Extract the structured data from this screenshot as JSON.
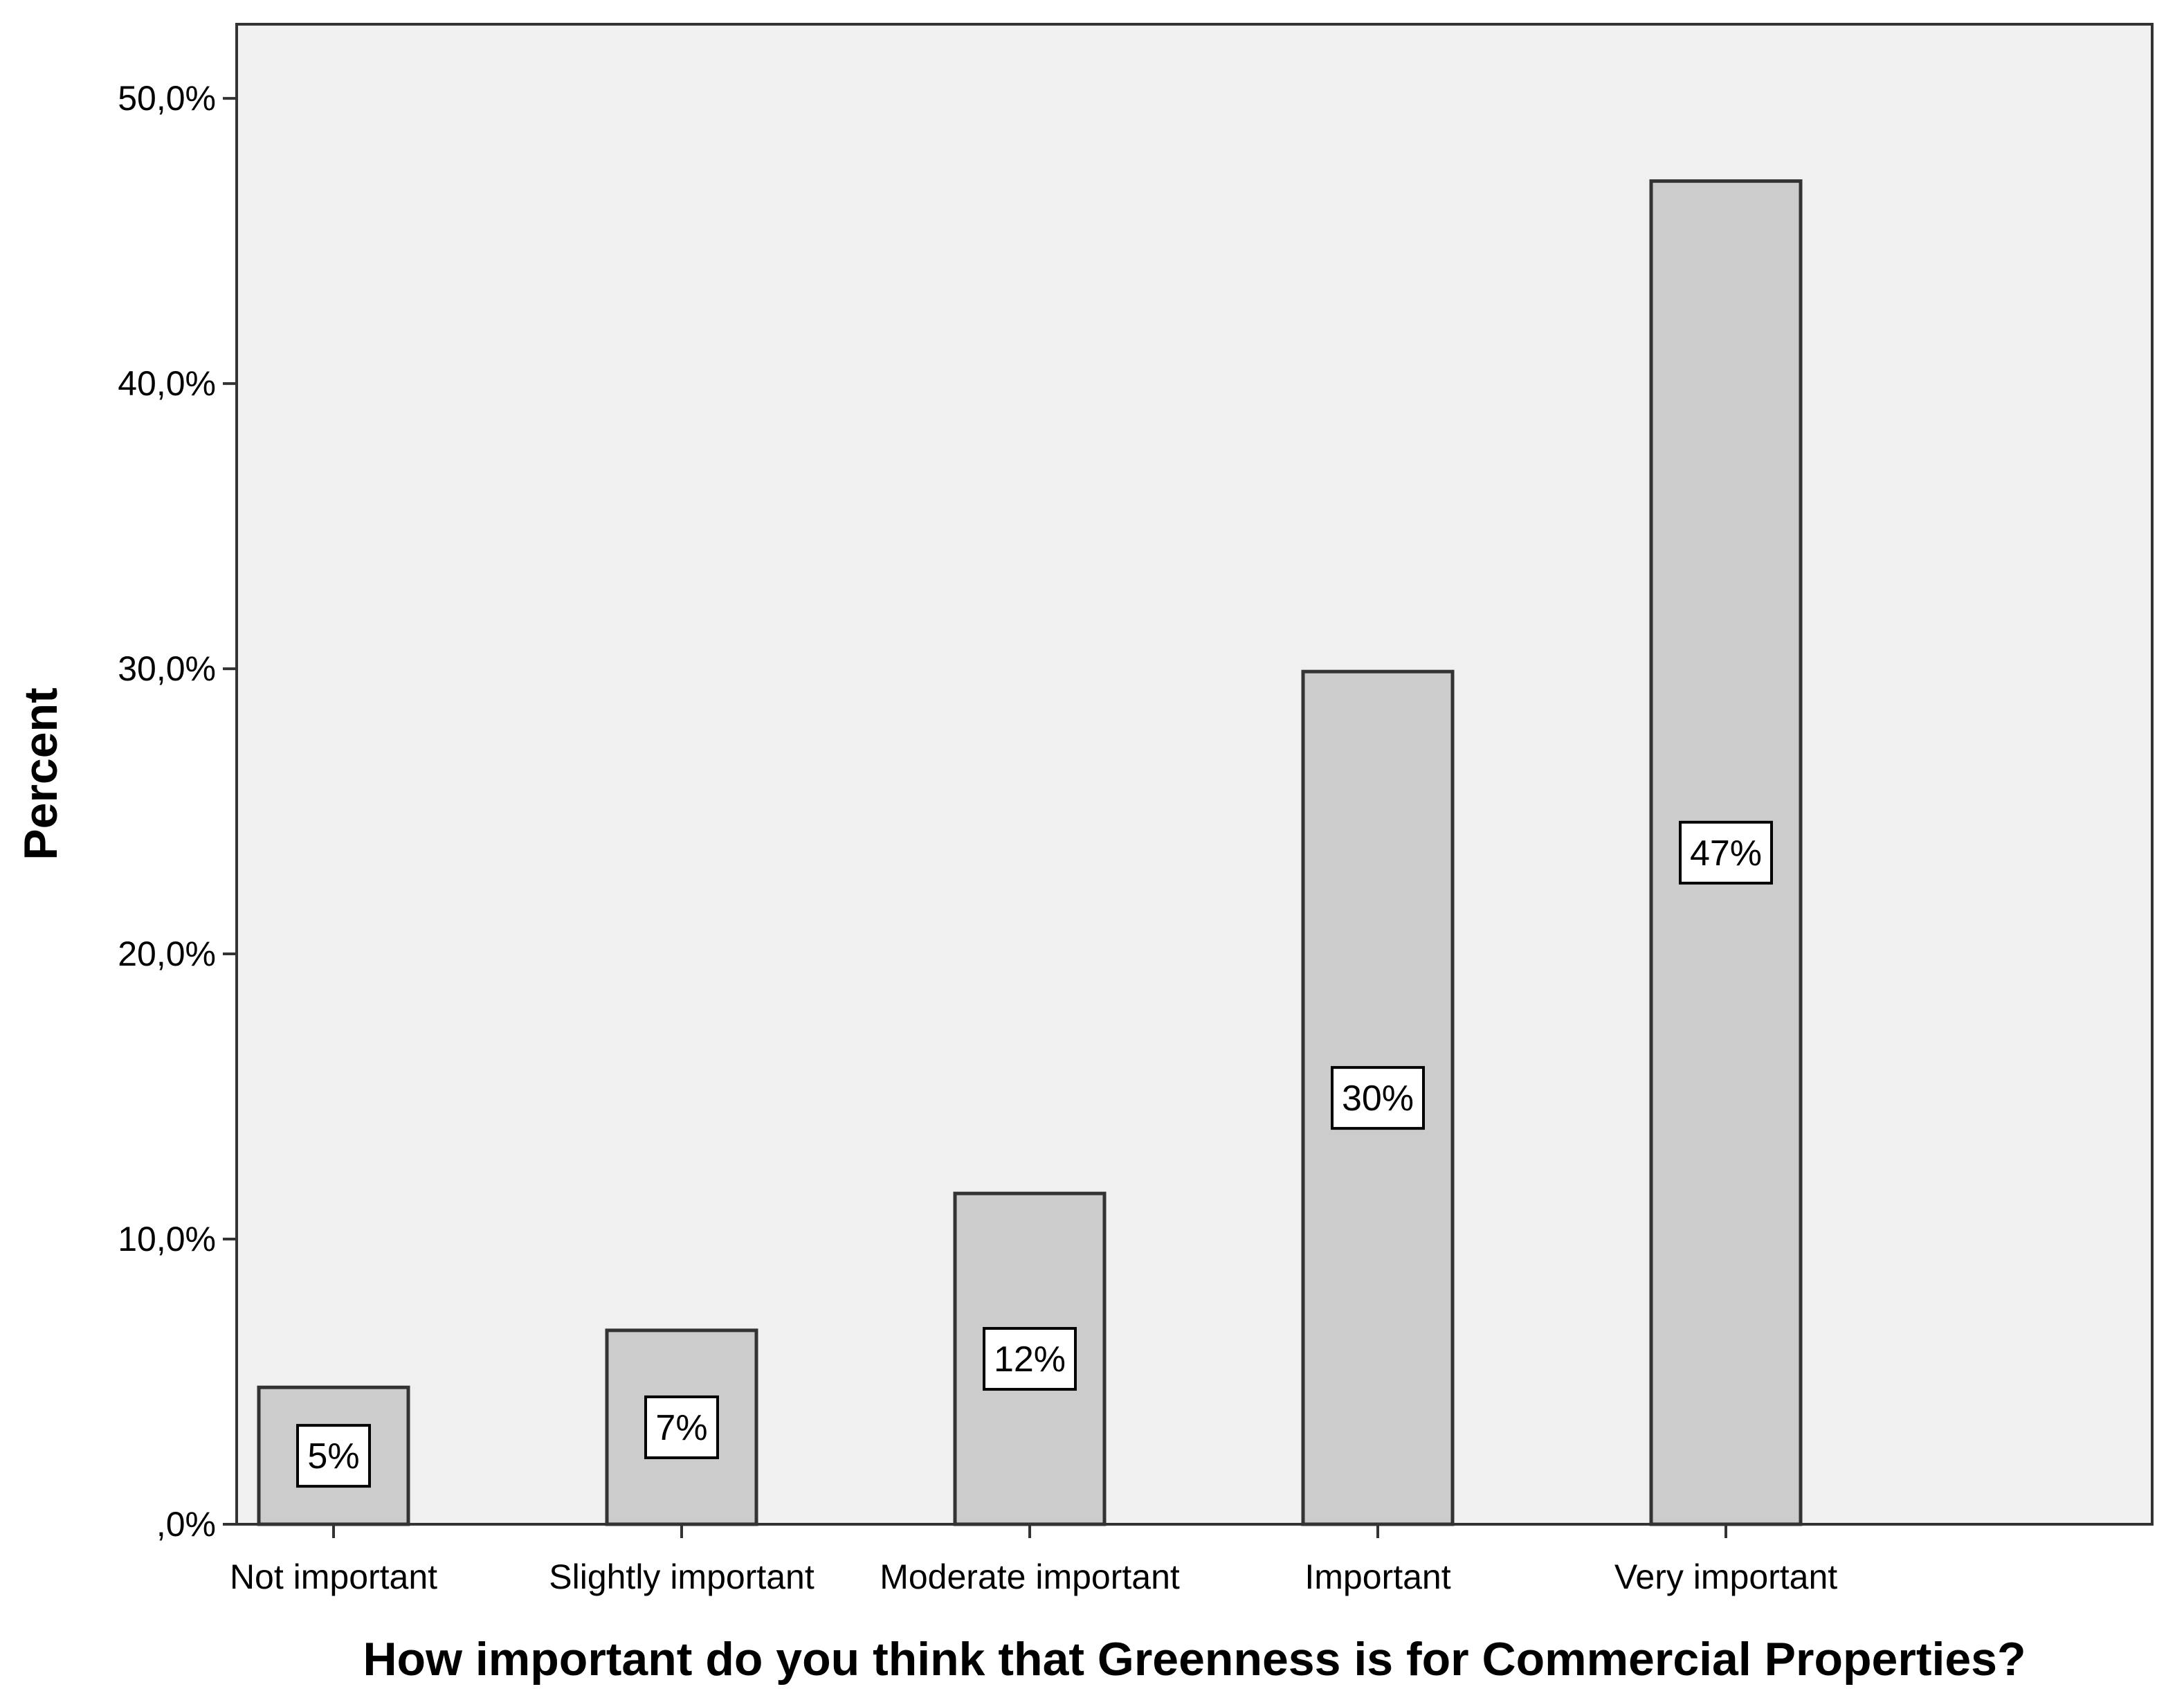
{
  "chart_data": {
    "type": "bar",
    "title": "",
    "xlabel": "How important do you think that Greenness is for Commercial Properties?",
    "ylabel": "Percent",
    "categories": [
      "Not important",
      "Slightly important",
      "Moderate important",
      "Important",
      "Very important"
    ],
    "values": [
      4.8,
      6.8,
      11.6,
      29.9,
      47.1
    ],
    "data_labels": [
      "5%",
      "7%",
      "12%",
      "30%",
      "47%"
    ],
    "y_ticks": [
      0,
      10,
      20,
      30,
      40,
      50
    ],
    "y_tick_labels": [
      ",0%",
      "10,0%",
      "20,0%",
      "30,0%",
      "40,0%",
      "50,0%"
    ],
    "ylim": [
      0,
      52.6
    ],
    "grid": false,
    "legend": "none",
    "colors": {
      "plot_background": "#f0f0f0",
      "bar_fill": "#cccccc",
      "bar_stroke": "#333333",
      "label_box": "#ffffff"
    }
  }
}
